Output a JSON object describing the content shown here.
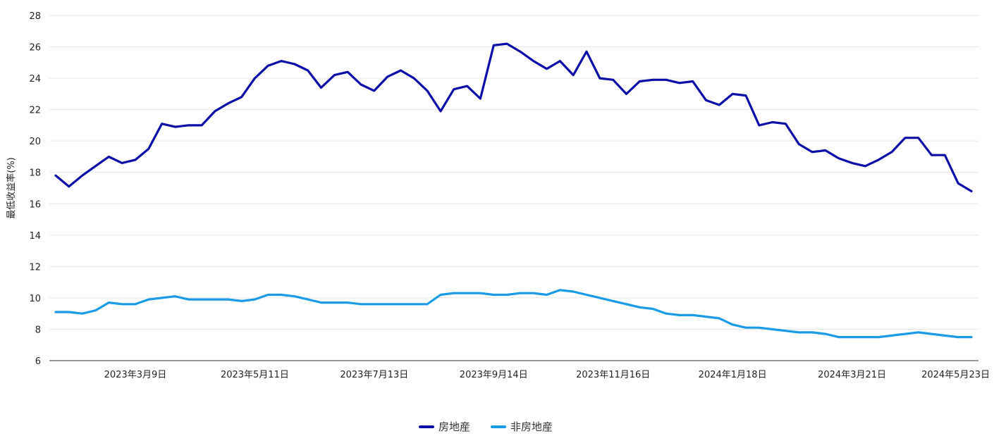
{
  "chart_data": {
    "type": "line",
    "ylabel": "最低收益率(%)",
    "ylim": [
      6,
      28
    ],
    "yticks": [
      6,
      8,
      10,
      12,
      14,
      16,
      18,
      20,
      22,
      24,
      26,
      28
    ],
    "grid": true,
    "legend_position": "bottom-center",
    "x_tick_labels": [
      {
        "index": 6,
        "label": "2023年3月9日"
      },
      {
        "index": 15,
        "label": "2023年5月11日"
      },
      {
        "index": 24,
        "label": "2023年7月13日"
      },
      {
        "index": 33,
        "label": "2023年9月14日"
      },
      {
        "index": 42,
        "label": "2023年11月16日"
      },
      {
        "index": 51,
        "label": "2024年1月18日"
      },
      {
        "index": 60,
        "label": "2024年3月21日"
      },
      {
        "index": 69,
        "label": "2024年5月23日"
      }
    ],
    "series": [
      {
        "name": "房地産",
        "color": "#0b0fa8",
        "values": [
          17.8,
          17.1,
          17.8,
          18.4,
          19.0,
          18.6,
          18.8,
          19.5,
          21.1,
          20.9,
          21.0,
          21.0,
          21.9,
          22.4,
          22.8,
          24.0,
          24.8,
          25.1,
          24.9,
          24.5,
          23.4,
          24.2,
          24.4,
          23.6,
          23.2,
          24.1,
          24.5,
          24.0,
          23.2,
          21.9,
          23.3,
          23.5,
          22.7,
          26.1,
          26.2,
          25.7,
          25.1,
          24.6,
          25.1,
          24.2,
          25.7,
          24.0,
          23.9,
          23.0,
          23.8,
          23.9,
          23.9,
          23.7,
          23.8,
          22.6,
          22.3,
          23.0,
          22.9,
          21.0,
          21.2,
          21.1,
          19.8,
          19.3,
          19.4,
          18.9,
          18.6,
          18.4,
          18.8,
          19.3,
          20.2,
          20.2,
          19.1,
          19.1,
          17.3,
          16.8
        ]
      },
      {
        "name": "非房地産",
        "color": "#1a9be6",
        "values": [
          9.1,
          9.1,
          9.0,
          9.2,
          9.7,
          9.6,
          9.6,
          9.9,
          10.0,
          10.1,
          9.9,
          9.9,
          9.9,
          9.9,
          9.8,
          9.9,
          10.2,
          10.2,
          10.1,
          9.9,
          9.7,
          9.7,
          9.7,
          9.6,
          9.6,
          9.6,
          9.6,
          9.6,
          9.6,
          10.2,
          10.3,
          10.3,
          10.3,
          10.2,
          10.2,
          10.3,
          10.3,
          10.2,
          10.5,
          10.4,
          10.2,
          10.0,
          9.8,
          9.6,
          9.4,
          9.3,
          9.0,
          8.9,
          8.9,
          8.8,
          8.7,
          8.3,
          8.1,
          8.1,
          8.0,
          7.9,
          7.8,
          7.8,
          7.7,
          7.5,
          7.5,
          7.5,
          7.5,
          7.6,
          7.7,
          7.8,
          7.7,
          7.6,
          7.5,
          7.5
        ]
      }
    ]
  }
}
